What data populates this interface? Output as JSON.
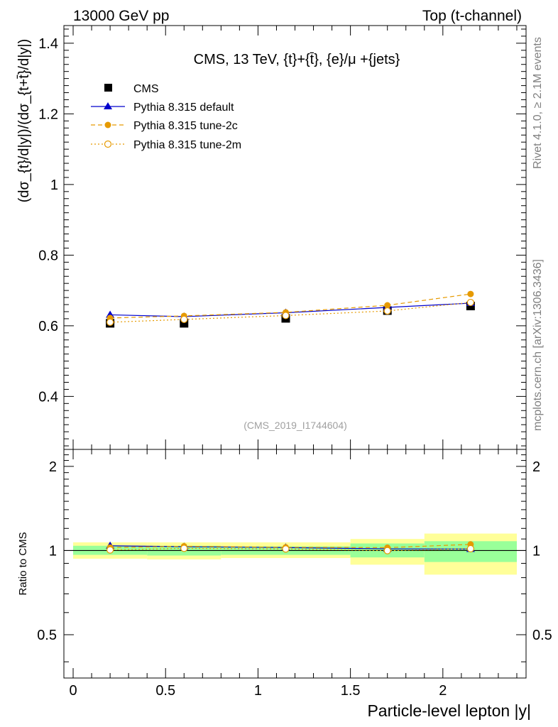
{
  "header": {
    "energy": "13000 GeV pp",
    "process": "Top (t-channel)"
  },
  "side": {
    "rivet": "Rivet 4.1.0, ≥ 2.1M events",
    "source": "mcplots.cern.ch [arXiv:1306.3436]"
  },
  "chart_data": {
    "type": "line",
    "title": "CMS, 13 TeV, {t}+{t̄}, {e}/μ +{jets}",
    "analysis": "(CMS_2019_I1744604)",
    "xlabel": "Particle-level lepton |y|",
    "ylabel": "(dσ_{t}/d|y|)/(dσ_{t+t̄}/d|y|)",
    "ratio_ylabel": "Ratio to CMS",
    "xlim": [
      -0.05,
      2.45
    ],
    "ylim": [
      0.25,
      1.45
    ],
    "ratio_ylim": [
      0.35,
      2.3
    ],
    "x_ticks": [
      {
        "v": 0,
        "label": "0"
      },
      {
        "v": 0.5,
        "label": "0.5"
      },
      {
        "v": 1,
        "label": "1"
      },
      {
        "v": 1.5,
        "label": "1.5"
      },
      {
        "v": 2,
        "label": "2"
      }
    ],
    "y_ticks": [
      {
        "v": 0.4,
        "label": "0.4"
      },
      {
        "v": 0.6,
        "label": "0.6"
      },
      {
        "v": 0.8,
        "label": "0.8"
      },
      {
        "v": 1.0,
        "label": "1"
      },
      {
        "v": 1.2,
        "label": "1.2"
      },
      {
        "v": 1.4,
        "label": "1.4"
      }
    ],
    "ratio_y_ticks": [
      {
        "v": 0.5,
        "label": "0.5"
      },
      {
        "v": 1,
        "label": "1"
      },
      {
        "v": 2,
        "label": "2"
      }
    ],
    "bins": [
      [
        0,
        0.4
      ],
      [
        0.4,
        0.8
      ],
      [
        0.8,
        1.5
      ],
      [
        1.5,
        1.9
      ],
      [
        1.9,
        2.4
      ]
    ],
    "x": [
      0.2,
      0.6,
      1.15,
      1.7,
      2.15
    ],
    "cms": {
      "name": "CMS",
      "values": [
        0.607,
        0.607,
        0.621,
        0.643,
        0.656
      ],
      "band_inner": [
        [
          0.965,
          1.04
        ],
        [
          0.96,
          1.04
        ],
        [
          0.965,
          1.035
        ],
        [
          0.945,
          1.06
        ],
        [
          0.91,
          1.08
        ]
      ],
      "band_outer": [
        [
          0.935,
          1.07
        ],
        [
          0.93,
          1.07
        ],
        [
          0.94,
          1.07
        ],
        [
          0.89,
          1.1
        ],
        [
          0.82,
          1.15
        ]
      ]
    },
    "series": [
      {
        "name": "Pythia 8.315 default",
        "color": "#0000cc",
        "dash": "",
        "marker": "triangle",
        "values": [
          0.631,
          0.626,
          0.637,
          0.652,
          0.664
        ],
        "ratio": [
          1.04,
          1.032,
          1.025,
          1.014,
          1.012
        ]
      },
      {
        "name": "Pythia 8.315 tune-2c",
        "color": "#e69a00",
        "dash": "6,4",
        "marker": "circle",
        "values": [
          0.622,
          0.628,
          0.638,
          0.658,
          0.69
        ],
        "ratio": [
          1.025,
          1.036,
          1.027,
          1.024,
          1.052
        ]
      },
      {
        "name": "Pythia 8.315 tune-2m",
        "color": "#e69a00",
        "dash": "2,3",
        "marker": "open-circle",
        "values": [
          0.61,
          0.618,
          0.629,
          0.642,
          0.666
        ],
        "ratio": [
          1.005,
          1.018,
          1.013,
          0.999,
          1.015
        ]
      }
    ]
  }
}
